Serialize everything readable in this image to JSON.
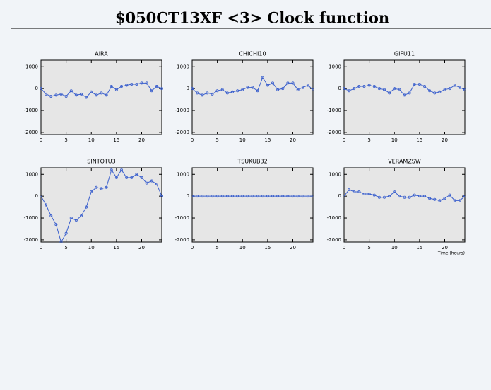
{
  "title": "$050CT13XF <3>  Clock function",
  "chart_data": [
    {
      "type": "line",
      "title": "AIRA",
      "x": [
        0,
        1,
        2,
        3,
        4,
        5,
        6,
        7,
        8,
        9,
        10,
        11,
        12,
        13,
        14,
        15,
        16,
        17,
        18,
        19,
        20,
        21,
        22,
        23,
        24
      ],
      "values": [
        0,
        -250,
        -350,
        -300,
        -250,
        -350,
        -100,
        -300,
        -250,
        -400,
        -150,
        -300,
        -200,
        -300,
        100,
        -50,
        100,
        150,
        200,
        200,
        250,
        250,
        -100,
        100,
        0
      ],
      "color": "#3a5fcd",
      "xlim": [
        0,
        24
      ],
      "ylim": [
        -2100,
        1300
      ],
      "xticks": [
        0,
        5,
        10,
        15,
        20
      ],
      "yticks": [
        -2000,
        -1000,
        0,
        1000
      ]
    },
    {
      "type": "line",
      "title": "CHICHI10",
      "x": [
        0,
        1,
        2,
        3,
        4,
        5,
        6,
        7,
        8,
        9,
        10,
        11,
        12,
        13,
        14,
        15,
        16,
        17,
        18,
        19,
        20,
        21,
        22,
        23,
        24
      ],
      "values": [
        0,
        -200,
        -300,
        -200,
        -250,
        -100,
        -50,
        -200,
        -150,
        -100,
        -50,
        50,
        50,
        -100,
        500,
        150,
        250,
        -50,
        0,
        250,
        250,
        -50,
        50,
        150,
        -50
      ],
      "color": "#3a5fcd",
      "xlim": [
        0,
        24
      ],
      "ylim": [
        -2100,
        1300
      ],
      "xticks": [
        0,
        5,
        10,
        15,
        20
      ],
      "yticks": [
        -2000,
        -1000,
        0,
        1000
      ]
    },
    {
      "type": "line",
      "title": "GIFU11",
      "x": [
        0,
        1,
        2,
        3,
        4,
        5,
        6,
        7,
        8,
        9,
        10,
        11,
        12,
        13,
        14,
        15,
        16,
        17,
        18,
        19,
        20,
        21,
        22,
        23,
        24
      ],
      "values": [
        0,
        -100,
        0,
        100,
        100,
        150,
        100,
        0,
        -50,
        -200,
        0,
        -50,
        -300,
        -200,
        200,
        200,
        100,
        -100,
        -200,
        -150,
        -50,
        0,
        150,
        50,
        -50
      ],
      "color": "#3a5fcd",
      "xlim": [
        0,
        24
      ],
      "ylim": [
        -2100,
        1300
      ],
      "xticks": [
        0,
        5,
        10,
        15,
        20
      ],
      "yticks": [
        -2000,
        -1000,
        0,
        1000
      ]
    },
    {
      "type": "line",
      "title": "SINTOTU3",
      "x": [
        0,
        1,
        2,
        3,
        4,
        5,
        6,
        7,
        8,
        9,
        10,
        11,
        12,
        13,
        14,
        15,
        16,
        17,
        18,
        19,
        20,
        21,
        22,
        23,
        24
      ],
      "values": [
        0,
        -400,
        -900,
        -1300,
        -2100,
        -1700,
        -1000,
        -1100,
        -900,
        -500,
        200,
        400,
        350,
        400,
        1200,
        850,
        1200,
        850,
        850,
        1000,
        850,
        600,
        700,
        550,
        0
      ],
      "color": "#3a5fcd",
      "xlim": [
        0,
        24
      ],
      "ylim": [
        -2100,
        1300
      ],
      "xticks": [
        0,
        5,
        10,
        15,
        20
      ],
      "yticks": [
        -2000,
        -1000,
        0,
        1000
      ]
    },
    {
      "type": "line",
      "title": "TSUKUB32",
      "x": [
        0,
        1,
        2,
        3,
        4,
        5,
        6,
        7,
        8,
        9,
        10,
        11,
        12,
        13,
        14,
        15,
        16,
        17,
        18,
        19,
        20,
        21,
        22,
        23,
        24
      ],
      "values": [
        0,
        0,
        0,
        0,
        0,
        0,
        0,
        0,
        0,
        0,
        0,
        0,
        0,
        0,
        0,
        0,
        0,
        0,
        0,
        0,
        0,
        0,
        0,
        0,
        0
      ],
      "color": "#3a5fcd",
      "xlim": [
        0,
        24
      ],
      "ylim": [
        -2100,
        1300
      ],
      "xticks": [
        0,
        5,
        10,
        15,
        20
      ],
      "yticks": [
        -2000,
        -1000,
        0,
        1000
      ]
    },
    {
      "type": "line",
      "title": "VERAMZSW",
      "x": [
        0,
        1,
        2,
        3,
        4,
        5,
        6,
        7,
        8,
        9,
        10,
        11,
        12,
        13,
        14,
        15,
        16,
        17,
        18,
        19,
        20,
        21,
        22,
        23,
        24
      ],
      "values": [
        0,
        300,
        200,
        200,
        100,
        100,
        50,
        -50,
        -50,
        0,
        200,
        0,
        -50,
        -50,
        50,
        0,
        0,
        -100,
        -150,
        -200,
        -100,
        50,
        -200,
        -200,
        0
      ],
      "color": "#3a5fcd",
      "xlim": [
        0,
        24
      ],
      "ylim": [
        -2100,
        1300
      ],
      "xticks": [
        0,
        5,
        10,
        15,
        20
      ],
      "yticks": [
        -2000,
        -1000,
        0,
        1000
      ],
      "xlabel": "Time (hours)"
    }
  ]
}
